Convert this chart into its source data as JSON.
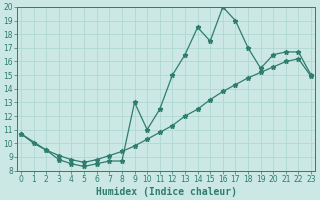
{
  "line1_x": [
    0,
    1,
    2,
    3,
    4,
    5,
    6,
    7,
    8,
    9,
    10,
    11,
    12,
    13,
    14,
    15,
    16,
    17,
    18,
    19,
    20,
    21,
    22,
    23
  ],
  "line1_y": [
    10.7,
    10.0,
    9.5,
    8.8,
    8.5,
    8.3,
    8.5,
    8.7,
    8.7,
    13.0,
    11.0,
    12.5,
    15.0,
    16.5,
    18.5,
    17.5,
    20.0,
    19.0,
    17.0,
    15.5,
    16.5,
    16.7,
    16.7,
    15.0
  ],
  "line2_x": [
    0,
    2,
    3,
    4,
    5,
    6,
    7,
    8,
    9,
    10,
    11,
    12,
    13,
    14,
    15,
    16,
    17,
    18,
    19,
    20,
    21,
    22,
    23
  ],
  "line2_y": [
    10.7,
    9.5,
    9.1,
    8.8,
    8.6,
    8.8,
    9.1,
    9.4,
    9.8,
    10.3,
    10.8,
    11.3,
    12.0,
    12.5,
    13.2,
    13.8,
    14.3,
    14.8,
    15.2,
    15.6,
    16.0,
    16.2,
    14.9
  ],
  "line_color": "#2e7d6e",
  "bg_color": "#cce8e4",
  "grid_color": "#b0d8d2",
  "marker": "*",
  "marker_size": 3.5,
  "xlabel": "Humidex (Indice chaleur)",
  "ylim": [
    8,
    20
  ],
  "xlim": [
    -0.3,
    23.3
  ],
  "yticks": [
    8,
    9,
    10,
    11,
    12,
    13,
    14,
    15,
    16,
    17,
    18,
    19,
    20
  ],
  "xticks": [
    0,
    1,
    2,
    3,
    4,
    5,
    6,
    7,
    8,
    9,
    10,
    11,
    12,
    13,
    14,
    15,
    16,
    17,
    18,
    19,
    20,
    21,
    22,
    23
  ],
  "tick_fontsize": 5.5,
  "xlabel_fontsize": 7,
  "linewidth": 0.9
}
